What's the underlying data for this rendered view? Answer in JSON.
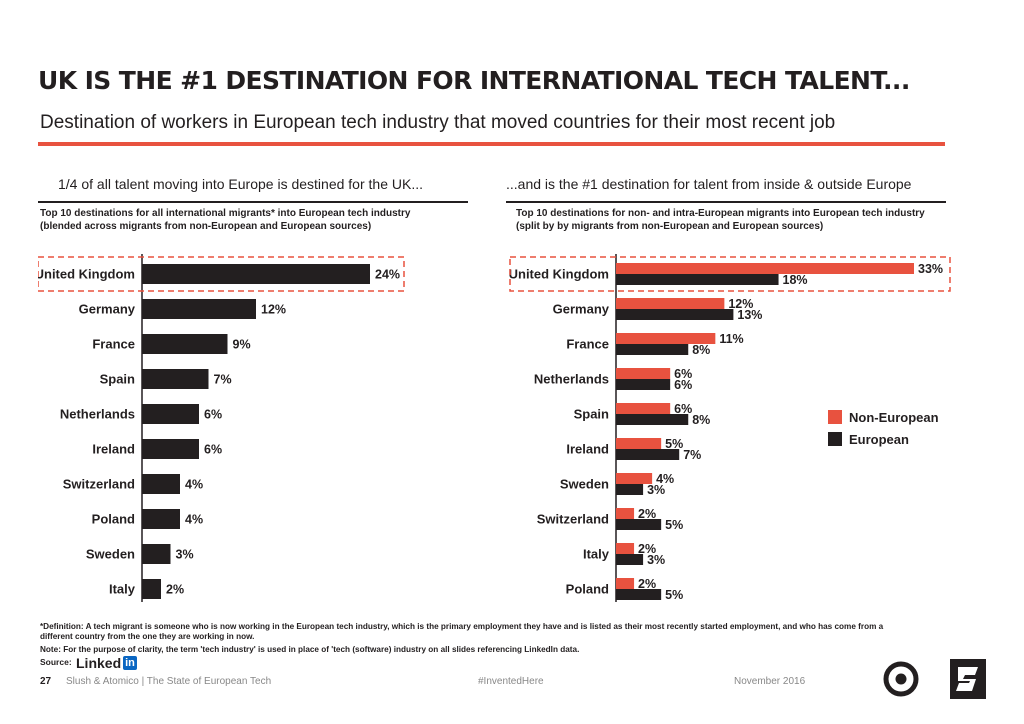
{
  "title": "UK IS THE #1 DESTINATION FOR INTERNATIONAL TECH TALENT...",
  "subtitle": "Destination of workers in European tech industry that moved countries for their most recent job",
  "colors": {
    "accent": "#e8523f",
    "bar_dark": "#231f20",
    "non_european": "#e8523f",
    "european": "#231f20"
  },
  "chart_data": [
    {
      "type": "bar",
      "orientation": "horizontal",
      "title": "1/4 of all talent moving into Europe is destined for the UK...",
      "description": [
        "Top 10 destinations for all international migrants* into European tech industry",
        "(blended across migrants from non-European and European sources)"
      ],
      "categories": [
        "United Kingdom",
        "Germany",
        "France",
        "Spain",
        "Netherlands",
        "Ireland",
        "Switzerland",
        "Poland",
        "Sweden",
        "Italy"
      ],
      "values": [
        24,
        12,
        9,
        7,
        6,
        6,
        4,
        4,
        3,
        2
      ],
      "value_labels": [
        "24%",
        "12%",
        "9%",
        "7%",
        "6%",
        "6%",
        "4%",
        "4%",
        "3%",
        "2%"
      ],
      "unit": "%",
      "highlight": "United Kingdom"
    },
    {
      "type": "bar",
      "orientation": "horizontal",
      "title": "...and is the #1 destination for talent from inside & outside Europe",
      "description": [
        "Top 10 destinations for non- and intra-European migrants into European tech industry",
        "(split by by migrants from non-European and European sources)"
      ],
      "categories": [
        "United Kingdom",
        "Germany",
        "France",
        "Netherlands",
        "Spain",
        "Ireland",
        "Sweden",
        "Switzerland",
        "Italy",
        "Poland"
      ],
      "series": [
        {
          "name": "Non-European",
          "values": [
            33,
            12,
            11,
            6,
            6,
            5,
            4,
            2,
            2,
            2
          ],
          "labels": [
            "33%",
            "12%",
            "11%",
            "6%",
            "6%",
            "5%",
            "4%",
            "2%",
            "2%",
            "2%"
          ]
        },
        {
          "name": "European",
          "values": [
            18,
            13,
            8,
            6,
            8,
            7,
            3,
            5,
            3,
            5
          ],
          "labels": [
            "18%",
            "13%",
            "8%",
            "6%",
            "8%",
            "7%",
            "3%",
            "5%",
            "3%",
            "5%"
          ]
        }
      ],
      "unit": "%",
      "legend": "right",
      "highlight": "United Kingdom"
    }
  ],
  "footnotes": {
    "definition": "*Definition: A tech migrant is someone who is now working in the European tech industry, which is the primary employment they have and is listed as their most recently started employment, and who has come from a",
    "definition_cont": "different country from the one they are working in now.",
    "note": "Note: For the purpose of clarity, the term 'tech industry' is used in place of 'tech (software) industry on all slides referencing LinkedIn data.",
    "source_label": "Source:",
    "source_name": "Linked",
    "source_name_badge": "in"
  },
  "footer": {
    "page_number": "27",
    "org": "Slush & Atomico  |  The State of European Tech",
    "tag": "#InventedHere",
    "date": "November 2016"
  },
  "icons": {
    "logo_left": "atomico-target-icon",
    "logo_right": "slush-s-icon"
  }
}
